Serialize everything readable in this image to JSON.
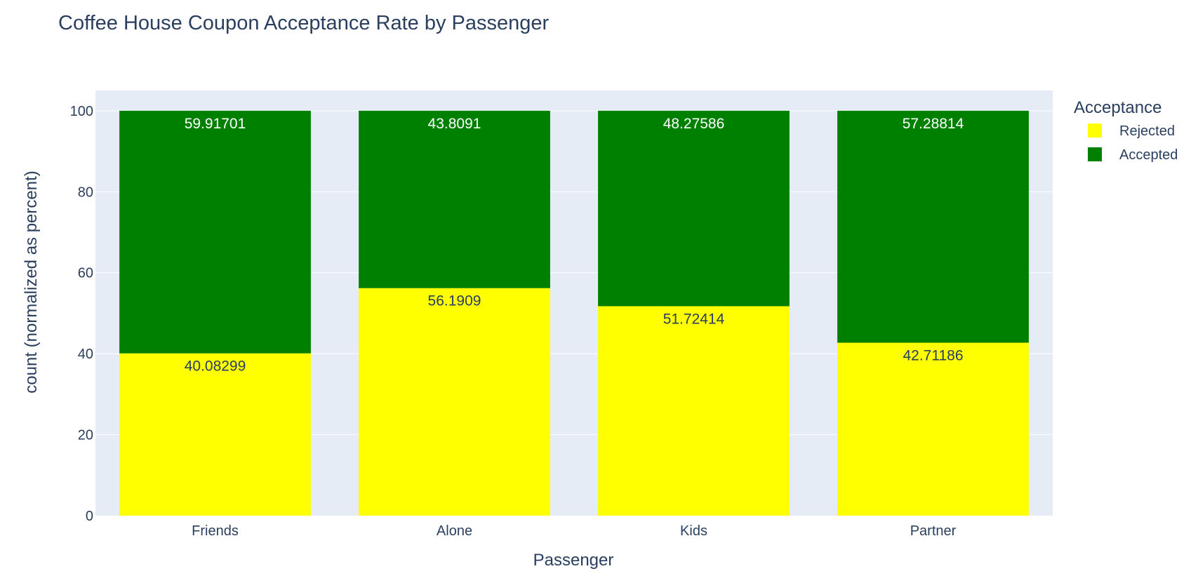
{
  "chart_data": {
    "type": "bar",
    "barmode": "stack",
    "title": "Coffee House Coupon Acceptance Rate by Passenger",
    "xlabel": "Passenger",
    "ylabel": "count (normalized as percent)",
    "categories": [
      "Friends",
      "Alone",
      "Kids",
      "Partner"
    ],
    "ylim": [
      0,
      105
    ],
    "yticks": [
      0,
      20,
      40,
      60,
      80,
      100
    ],
    "grid": true,
    "legend": {
      "title": "Acceptance",
      "placement": "top-right"
    },
    "series": [
      {
        "name": "Rejected",
        "color": "#ffff00",
        "label_color": "#2a3f5f",
        "values": [
          40.08299,
          56.1909,
          51.72414,
          42.71186
        ],
        "labels": [
          "40.08299",
          "56.1909",
          "51.72414",
          "42.71186"
        ]
      },
      {
        "name": "Accepted",
        "color": "#008000",
        "label_color": "#ffffff",
        "values": [
          59.91701,
          43.8091,
          48.27586,
          57.28814
        ],
        "labels": [
          "59.91701",
          "43.8091",
          "48.27586",
          "57.28814"
        ]
      }
    ]
  },
  "style": {
    "plot_bg": "#e5ecf6",
    "grid_color": "#ffffff",
    "text_color": "#2a3f5f"
  }
}
